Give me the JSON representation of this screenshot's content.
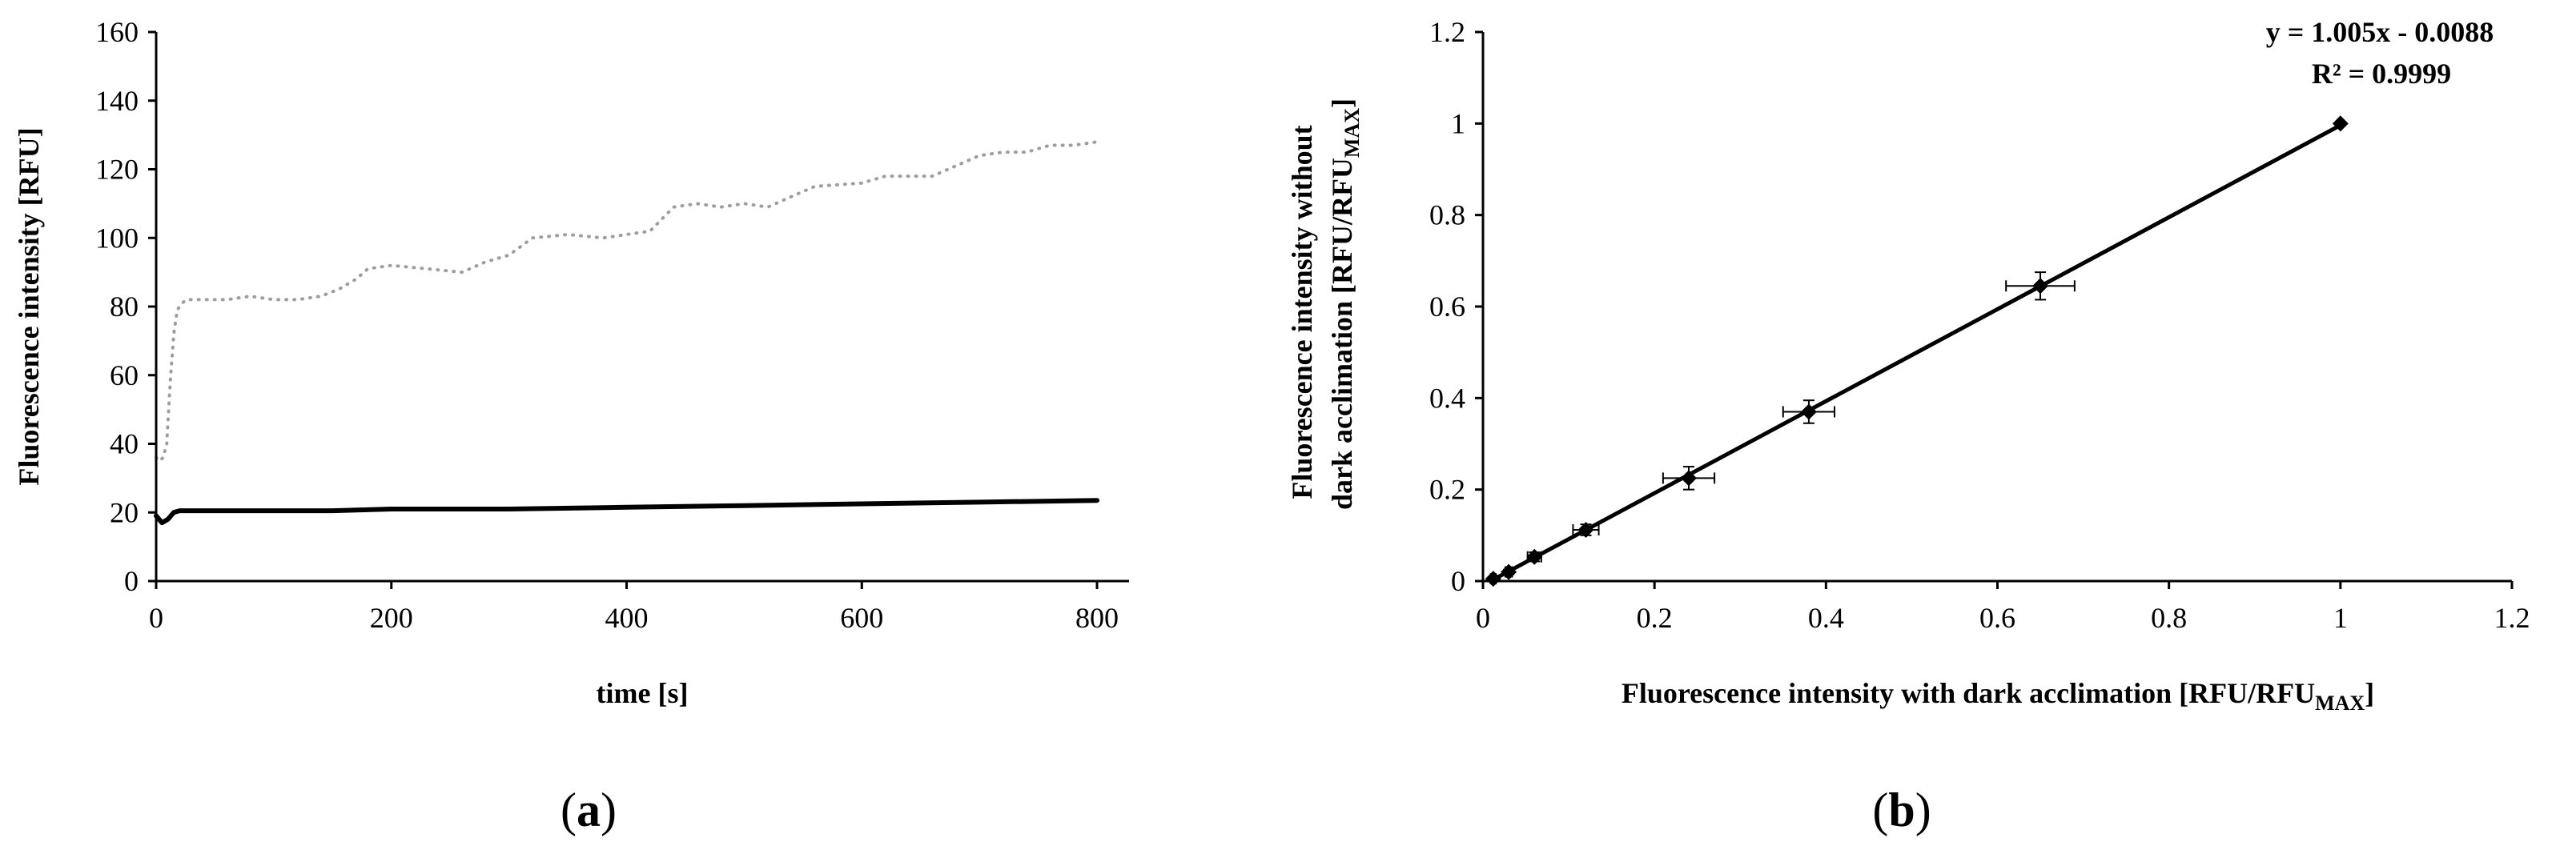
{
  "chart_data": [
    {
      "type": "scatter",
      "panel_label": "a",
      "xlabel": "time [s]",
      "ylabel": "Fluorescence intensity [RFU]",
      "xlim": [
        0,
        800
      ],
      "ylim": [
        0,
        160
      ],
      "xticks": [
        0,
        200,
        400,
        600,
        800
      ],
      "yticks": [
        0,
        20,
        40,
        60,
        80,
        100,
        120,
        140,
        160
      ],
      "grid": false,
      "legend": "none",
      "series": [
        {
          "color": "#9e9e9e",
          "style": "dotted",
          "x": [
            0,
            3,
            6,
            9,
            12,
            15,
            18,
            22,
            26,
            30,
            40,
            60,
            80,
            100,
            120,
            140,
            155,
            170,
            180,
            200,
            230,
            260,
            280,
            300,
            320,
            350,
            380,
            420,
            440,
            460,
            480,
            500,
            520,
            540,
            560,
            600,
            620,
            660,
            700,
            720,
            740,
            760,
            780,
            800
          ],
          "y": [
            36,
            35,
            36,
            40,
            58,
            72,
            79,
            81,
            82,
            82,
            82,
            82,
            83,
            82,
            82,
            83,
            85,
            88,
            91,
            92,
            91,
            90,
            93,
            95,
            100,
            101,
            100,
            102,
            109,
            110,
            109,
            110,
            109,
            112,
            115,
            116,
            118,
            118,
            124,
            125,
            125,
            127,
            127,
            128
          ]
        },
        {
          "color": "#000000",
          "style": "solid",
          "x": [
            0,
            5,
            10,
            15,
            20,
            50,
            100,
            150,
            200,
            300,
            400,
            500,
            600,
            700,
            800
          ],
          "y": [
            19,
            17,
            18,
            20,
            20.5,
            20.5,
            20.5,
            20.5,
            21,
            21,
            21.5,
            22,
            22.5,
            23,
            23.5
          ]
        }
      ]
    },
    {
      "type": "scatter",
      "panel_label": "b",
      "xlabel": "Fluorescence intensity with dark acclimation [RFU/RFU",
      "xlabel_sub": "MAX",
      "xlabel_end": "]",
      "ylabel_line1": "Fluorescence intensity without",
      "ylabel_line2": "dark acclimation [RFU/RFU",
      "ylabel_sub": "MAX",
      "ylabel_end": "]",
      "xlim": [
        0,
        1.2
      ],
      "ylim": [
        0,
        1.2
      ],
      "xticks": [
        "0",
        "0.2",
        "0.4",
        "0.6",
        "0.8",
        "1",
        "1.2"
      ],
      "yticks": [
        "0",
        "0.2",
        "0.4",
        "0.6",
        "0.8",
        "1",
        "1.2"
      ],
      "grid": false,
      "legend": "none",
      "equation": "y = 1.005x - 0.0088",
      "r_squared": "R² = 0.9999",
      "trendline": {
        "slope": 1.005,
        "intercept": -0.0088,
        "x_from": 0.01,
        "x_to": 1.0
      },
      "points": [
        {
          "x": 0.012,
          "y": 0.005,
          "xerr": 0.003,
          "yerr": 0.003
        },
        {
          "x": 0.03,
          "y": 0.02,
          "xerr": 0.004,
          "yerr": 0.005
        },
        {
          "x": 0.06,
          "y": 0.053,
          "xerr": 0.008,
          "yerr": 0.01
        },
        {
          "x": 0.12,
          "y": 0.112,
          "xerr": 0.015,
          "yerr": 0.012
        },
        {
          "x": 0.24,
          "y": 0.225,
          "xerr": 0.03,
          "yerr": 0.025
        },
        {
          "x": 0.38,
          "y": 0.37,
          "xerr": 0.03,
          "yerr": 0.025
        },
        {
          "x": 0.65,
          "y": 0.645,
          "xerr": 0.04,
          "yerr": 0.03
        },
        {
          "x": 1.0,
          "y": 1.0,
          "xerr": 0,
          "yerr": 0
        }
      ]
    }
  ]
}
